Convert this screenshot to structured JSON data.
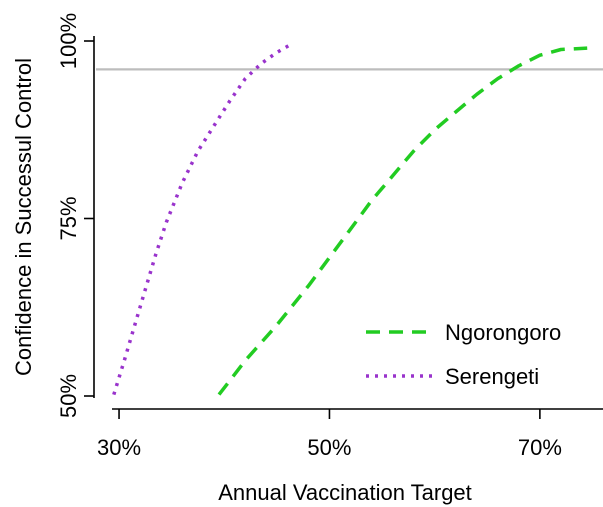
{
  "chart_data": {
    "type": "line",
    "title": "",
    "xlabel": "Annual Vaccination Target",
    "ylabel": "Confidence in Successul Control",
    "xlim": [
      28,
      76
    ],
    "ylim": [
      50,
      100
    ],
    "x_ticks": [
      {
        "value": 30,
        "label": "30%"
      },
      {
        "value": 50,
        "label": "50%"
      },
      {
        "value": 70,
        "label": "70%"
      }
    ],
    "y_ticks": [
      {
        "value": 50,
        "label": "50%"
      },
      {
        "value": 75,
        "label": "75%"
      },
      {
        "value": 100,
        "label": "100%"
      }
    ],
    "reference_line": {
      "y": 96,
      "color": "#bdbdbd"
    },
    "legend_position": "bottom-right",
    "series": [
      {
        "name": "Ngorongoro",
        "color": "#22cc22",
        "dash": "dashed",
        "x": [
          39.5,
          42,
          45,
          48,
          50,
          52,
          54,
          56,
          58,
          60,
          62,
          64,
          66,
          68,
          70,
          72,
          74.5
        ],
        "y": [
          50.2,
          55,
          60,
          65.5,
          69.5,
          73.5,
          77.5,
          81,
          84.5,
          87.5,
          90,
          92.5,
          94.7,
          96.5,
          98,
          98.8,
          99
        ]
      },
      {
        "name": "Serengeti",
        "color": "#9933cc",
        "dash": "dotted",
        "x": [
          29.5,
          30.5,
          31.5,
          32.5,
          33.5,
          34.5,
          36,
          37.5,
          39,
          40.5,
          42,
          43.5,
          45,
          46.3
        ],
        "y": [
          50.2,
          55,
          60,
          65,
          70,
          74.5,
          80,
          84.5,
          88,
          91.5,
          94.7,
          96.8,
          98.4,
          99.5
        ]
      }
    ]
  }
}
